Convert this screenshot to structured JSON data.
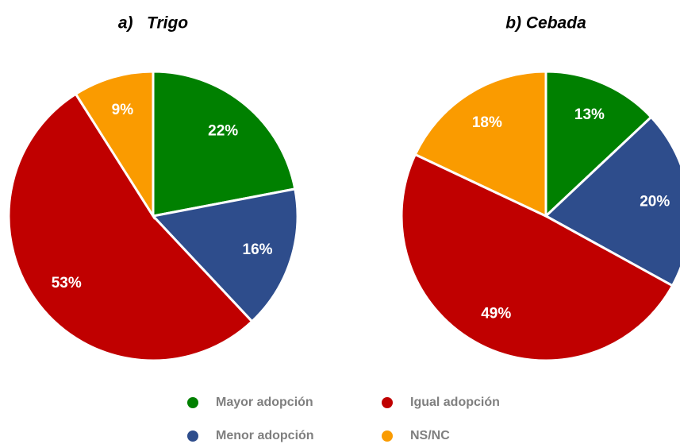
{
  "chart_data": [
    {
      "type": "pie",
      "title": "a)   Trigo",
      "values": [
        22,
        16,
        53,
        9
      ],
      "value_labels": [
        "22%",
        "16%",
        "53%",
        "9%"
      ]
    },
    {
      "type": "pie",
      "title": "b) Cebada",
      "values": [
        13,
        20,
        49,
        18
      ],
      "value_labels": [
        "13%",
        "20%",
        "49%",
        "18%"
      ]
    }
  ],
  "legend": {
    "categories": [
      "Mayor adopción",
      "Menor adopción",
      "Igual adopción",
      "NS/NC"
    ],
    "colors": [
      "#008000",
      "#2e4d8c",
      "#c00000",
      "#fa9b00"
    ]
  }
}
